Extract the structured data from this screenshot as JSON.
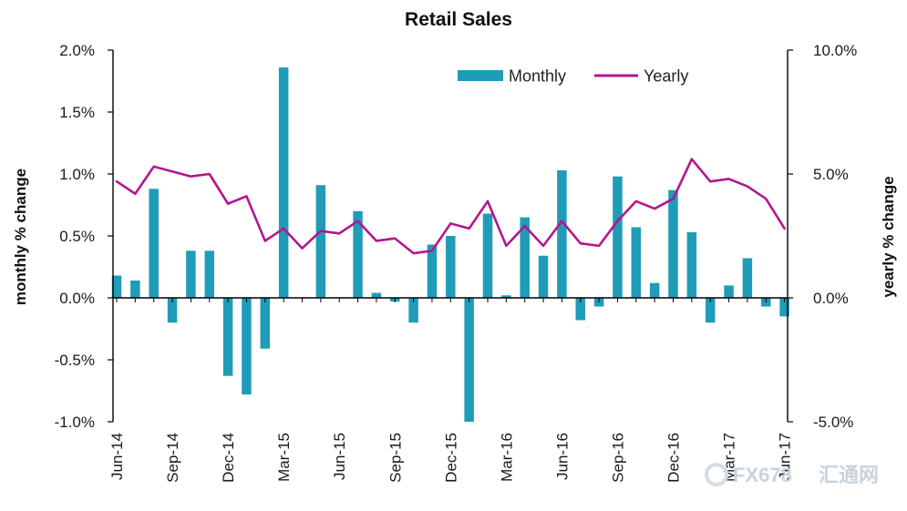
{
  "chart_data": {
    "type": "bar",
    "title": "Retail Sales",
    "ylabel": "monthly % change",
    "y2label": "yearly % change",
    "ylim": [
      -1.0,
      2.0
    ],
    "y2lim": [
      -5.0,
      10.0
    ],
    "yticks": [
      "2.0%",
      "1.5%",
      "1.0%",
      "0.5%",
      "0.0%",
      "-0.5%",
      "-1.0%"
    ],
    "y2ticks": [
      "10.0%",
      "5.0%",
      "0.0%",
      "-5.0%"
    ],
    "xtick_labels": [
      "Jun-14",
      "Sep-14",
      "Dec-14",
      "Mar-15",
      "Jun-15",
      "Sep-15",
      "Dec-15",
      "Mar-16",
      "Jun-16",
      "Sep-16",
      "Dec-16",
      "Mar-17",
      "Jun-17"
    ],
    "categories": [
      "Jun-14",
      "Jul-14",
      "Aug-14",
      "Sep-14",
      "Oct-14",
      "Nov-14",
      "Dec-14",
      "Jan-15",
      "Feb-15",
      "Mar-15",
      "Apr-15",
      "May-15",
      "Jun-15",
      "Jul-15",
      "Aug-15",
      "Sep-15",
      "Oct-15",
      "Nov-15",
      "Dec-15",
      "Jan-16",
      "Feb-16",
      "Mar-16",
      "Apr-16",
      "May-16",
      "Jun-16",
      "Jul-16",
      "Aug-16",
      "Sep-16",
      "Oct-16",
      "Nov-16",
      "Dec-16",
      "Jan-17",
      "Feb-17",
      "Mar-17",
      "Apr-17",
      "May-17",
      "Jun-17"
    ],
    "series": [
      {
        "name": "Monthly",
        "kind": "bar",
        "axis": "left",
        "color": "#1f9cb8",
        "values": [
          0.18,
          0.14,
          0.88,
          -0.2,
          0.38,
          0.38,
          -0.63,
          -0.78,
          -0.41,
          1.86,
          0.0,
          0.91,
          0.0,
          0.7,
          0.04,
          -0.03,
          -0.2,
          0.43,
          0.5,
          -1.0,
          0.68,
          0.02,
          0.65,
          0.34,
          1.03,
          -0.18,
          -0.07,
          0.98,
          0.57,
          0.12,
          0.87,
          0.53,
          -0.2,
          0.1,
          0.32,
          -0.07,
          -0.15
        ]
      },
      {
        "name": "Yearly",
        "kind": "line",
        "axis": "right",
        "color": "#b3168e",
        "values": [
          4.7,
          4.2,
          5.3,
          5.1,
          4.9,
          5.0,
          3.8,
          4.1,
          2.3,
          2.8,
          2.0,
          2.7,
          2.6,
          3.1,
          2.3,
          2.4,
          1.8,
          1.9,
          3.0,
          2.8,
          3.9,
          2.1,
          2.9,
          2.1,
          3.1,
          2.2,
          2.1,
          3.1,
          3.9,
          3.6,
          4.0,
          5.6,
          4.7,
          4.8,
          4.5,
          4.0,
          2.8
        ]
      }
    ],
    "legend": {
      "position": "top-right",
      "entries": [
        "Monthly",
        "Yearly"
      ]
    },
    "grid": false,
    "annotations": [
      "FX678",
      "汇通网"
    ]
  }
}
